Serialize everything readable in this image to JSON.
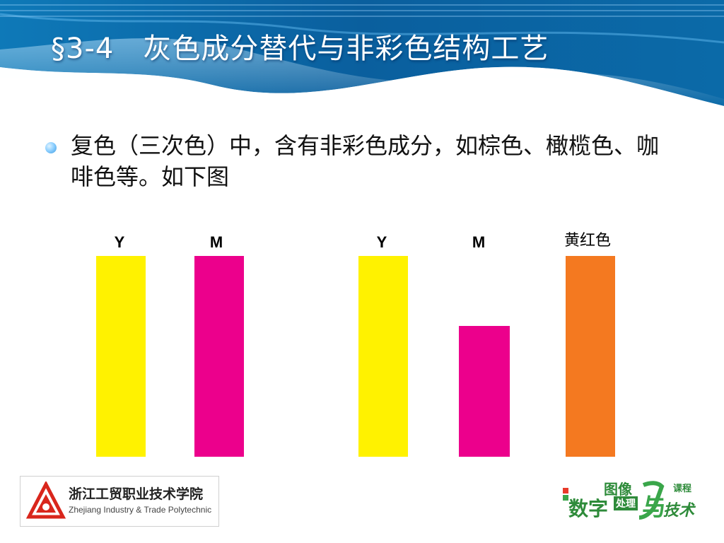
{
  "slide": {
    "title": "§3-4　灰色成分替代与非彩色结构工艺",
    "bullet": "复色（三次色）中，含有非彩色成分，如棕色、橄榄色、咖啡色等。如下图"
  },
  "figure": {
    "bars": [
      {
        "label": "Y",
        "value": 1.0,
        "color": "#fff200"
      },
      {
        "label": "M",
        "value": 1.0,
        "color": "#ec008c"
      },
      {
        "label": "Y",
        "value": 1.0,
        "color": "#fff200"
      },
      {
        "label": "M",
        "value": 0.65,
        "color": "#ec008c"
      },
      {
        "label": "黄红色",
        "value": 1.0,
        "color": "#f47920"
      }
    ]
  },
  "footer": {
    "school_cn": "浙江工贸职业技术学院",
    "school_en": "Zhejiang Industry & Trade Polytechnic",
    "logo_right": {
      "line1": "数字",
      "line2": "图像",
      "line3": "处理",
      "line4": "与",
      "line5": "技术",
      "line6": "课程"
    }
  },
  "colors": {
    "header_blue": "#0b6fb0",
    "bullet_dot": "#8fd0ff"
  }
}
